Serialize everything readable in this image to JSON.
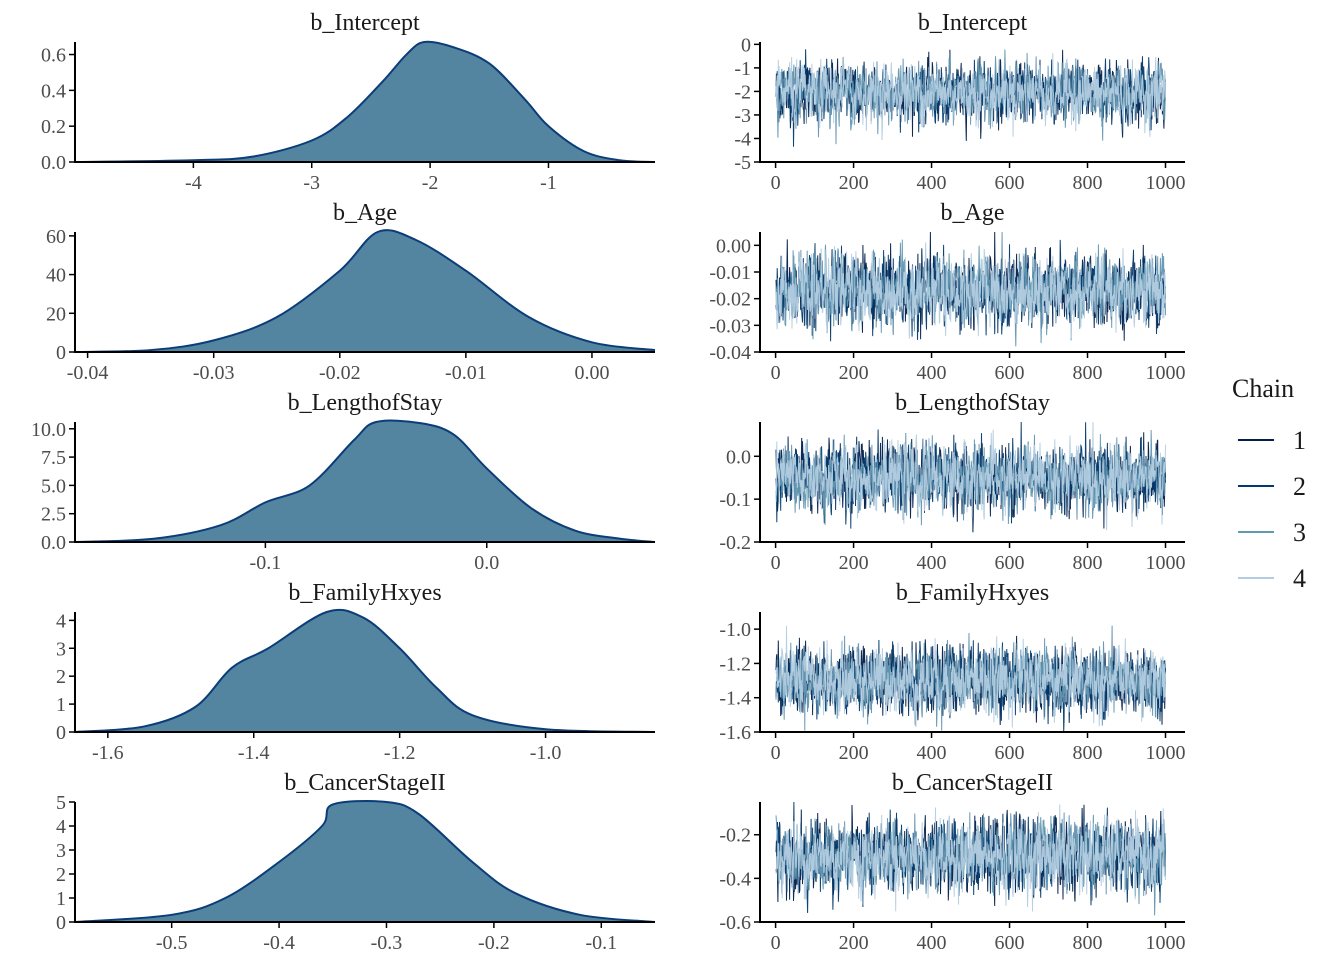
{
  "chart_data": [
    {
      "type": "area",
      "panel": "density",
      "title": "b_Intercept",
      "xlim": [
        -5.0,
        -0.1
      ],
      "ylim": [
        0,
        0.67
      ],
      "xticks": [
        -4,
        -3,
        -2,
        -1
      ],
      "xtick_labels": [
        "-4",
        "-3",
        "-2",
        "-1"
      ],
      "yticks": [
        0,
        0.2,
        0.4,
        0.6
      ],
      "ytick_labels": [
        "0.0",
        "0.2",
        "0.4",
        "0.6"
      ],
      "x": [
        -5,
        -4,
        -3.5,
        -3,
        -2.7,
        -2.4,
        -2.2,
        -2.05,
        -1.8,
        -1.5,
        -1.2,
        -1,
        -0.7,
        -0.4,
        -0.1
      ],
      "y": [
        0,
        0.01,
        0.03,
        0.12,
        0.25,
        0.45,
        0.6,
        0.67,
        0.64,
        0.55,
        0.35,
        0.2,
        0.06,
        0.01,
        0
      ]
    },
    {
      "type": "line",
      "panel": "trace",
      "title": "b_Intercept",
      "xlim": [
        -40,
        1050
      ],
      "ylim": [
        -5,
        0.1
      ],
      "xticks": [
        0,
        200,
        400,
        600,
        800,
        1000
      ],
      "xtick_labels": [
        "0",
        "200",
        "400",
        "600",
        "800",
        "1000"
      ],
      "yticks": [
        0,
        -1,
        -2,
        -3,
        -4,
        -5
      ],
      "ytick_labels": [
        "0",
        "-1",
        "-2",
        "-3",
        "-4",
        "-5"
      ]
    },
    {
      "type": "area",
      "panel": "density",
      "title": "b_Age",
      "xlim": [
        -0.041,
        0.005
      ],
      "ylim": [
        0,
        62
      ],
      "xticks": [
        -0.04,
        -0.03,
        -0.02,
        -0.01,
        0
      ],
      "xtick_labels": [
        "-0.04",
        "-0.03",
        "-0.02",
        "-0.01",
        "0.00"
      ],
      "yticks": [
        0,
        20,
        40,
        60
      ],
      "ytick_labels": [
        "0",
        "20",
        "40",
        "60"
      ],
      "x": [
        -0.041,
        -0.035,
        -0.03,
        -0.025,
        -0.02,
        -0.017,
        -0.014,
        -0.01,
        -0.005,
        0,
        0.005
      ],
      "y": [
        0,
        1,
        6,
        18,
        42,
        62,
        58,
        42,
        18,
        5,
        1
      ]
    },
    {
      "type": "line",
      "panel": "trace",
      "title": "b_Age",
      "xlim": [
        -40,
        1050
      ],
      "ylim": [
        -0.04,
        0.005
      ],
      "xticks": [
        0,
        200,
        400,
        600,
        800,
        1000
      ],
      "xtick_labels": [
        "0",
        "200",
        "400",
        "600",
        "800",
        "1000"
      ],
      "yticks": [
        0,
        -0.01,
        -0.02,
        -0.03,
        -0.04
      ],
      "ytick_labels": [
        "0.00",
        "-0.01",
        "-0.02",
        "-0.03",
        "-0.04"
      ]
    },
    {
      "type": "area",
      "panel": "density",
      "title": "b_LengthofStay",
      "xlim": [
        -0.186,
        0.076
      ],
      "ylim": [
        0,
        10.6
      ],
      "xticks": [
        -0.1,
        0
      ],
      "xtick_labels": [
        "-0.1",
        "0.0"
      ],
      "yticks": [
        0,
        2.5,
        5,
        7.5,
        10
      ],
      "ytick_labels": [
        "0.0",
        "2.5",
        "5.0",
        "7.5",
        "10.0"
      ],
      "x": [
        -0.186,
        -0.15,
        -0.12,
        -0.1,
        -0.08,
        -0.06,
        -0.05,
        -0.03,
        -0.015,
        0,
        0.02,
        0.04,
        0.06,
        0.076
      ],
      "y": [
        0,
        0.3,
        1.5,
        3.5,
        5,
        9,
        10.6,
        10.5,
        9.5,
        6.5,
        3,
        1,
        0.3,
        0
      ]
    },
    {
      "type": "line",
      "panel": "trace",
      "title": "b_LengthofStay",
      "xlim": [
        -40,
        1050
      ],
      "ylim": [
        -0.2,
        0.08
      ],
      "xticks": [
        0,
        200,
        400,
        600,
        800,
        1000
      ],
      "xtick_labels": [
        "0",
        "200",
        "400",
        "600",
        "800",
        "1000"
      ],
      "yticks": [
        0,
        -0.1,
        -0.2
      ],
      "ytick_labels": [
        "0.0",
        "-0.1",
        "-0.2"
      ]
    },
    {
      "type": "area",
      "panel": "density",
      "title": "b_FamilyHxyes",
      "xlim": [
        -1.645,
        -0.85
      ],
      "ylim": [
        0,
        4.3
      ],
      "xticks": [
        -1.6,
        -1.4,
        -1.2,
        -1.0
      ],
      "xtick_labels": [
        "-1.6",
        "-1.4",
        "-1.2",
        "-1.0"
      ],
      "yticks": [
        0,
        1,
        2,
        3,
        4
      ],
      "ytick_labels": [
        "0",
        "1",
        "2",
        "3",
        "4"
      ],
      "x": [
        -1.645,
        -1.55,
        -1.48,
        -1.43,
        -1.38,
        -1.3,
        -1.25,
        -1.2,
        -1.15,
        -1.1,
        -1.0,
        -0.85
      ],
      "y": [
        0,
        0.2,
        0.9,
        2.3,
        3,
        4.3,
        4.1,
        3,
        1.6,
        0.6,
        0.1,
        0
      ]
    },
    {
      "type": "line",
      "panel": "trace",
      "title": "b_FamilyHxyes",
      "xlim": [
        -40,
        1050
      ],
      "ylim": [
        -1.6,
        -0.9
      ],
      "xticks": [
        0,
        200,
        400,
        600,
        800,
        1000
      ],
      "xtick_labels": [
        "0",
        "200",
        "400",
        "600",
        "800",
        "1000"
      ],
      "yticks": [
        -1.0,
        -1.2,
        -1.4,
        -1.6
      ],
      "ytick_labels": [
        "-1.0",
        "-1.2",
        "-1.4",
        "-1.6"
      ]
    },
    {
      "type": "area",
      "panel": "density",
      "title": "b_CancerStageII",
      "xlim": [
        -0.59,
        -0.05
      ],
      "ylim": [
        0,
        5
      ],
      "xticks": [
        -0.5,
        -0.4,
        -0.3,
        -0.2,
        -0.1
      ],
      "xtick_labels": [
        "-0.5",
        "-0.4",
        "-0.3",
        "-0.2",
        "-0.1"
      ],
      "yticks": [
        0,
        1,
        2,
        3,
        4,
        5
      ],
      "ytick_labels": [
        "0",
        "1",
        "2",
        "3",
        "4",
        "5"
      ],
      "x": [
        -0.59,
        -0.5,
        -0.45,
        -0.4,
        -0.36,
        -0.35,
        -0.3,
        -0.27,
        -0.22,
        -0.18,
        -0.12,
        -0.05
      ],
      "y": [
        0,
        0.3,
        1,
        2.5,
        4,
        4.9,
        5,
        4.5,
        2.5,
        1.2,
        0.3,
        0
      ]
    },
    {
      "type": "line",
      "panel": "trace",
      "title": "b_CancerStageII",
      "xlim": [
        -40,
        1050
      ],
      "ylim": [
        -0.6,
        -0.05
      ],
      "xticks": [
        0,
        200,
        400,
        600,
        800,
        1000
      ],
      "xtick_labels": [
        "0",
        "200",
        "400",
        "600",
        "800",
        "1000"
      ],
      "yticks": [
        -0.2,
        -0.4,
        -0.6
      ],
      "ytick_labels": [
        "-0.2",
        "-0.4",
        "-0.6"
      ]
    }
  ],
  "legend": {
    "title": "Chain",
    "items": [
      {
        "label": "1",
        "color": "#011f4b"
      },
      {
        "label": "2",
        "color": "#03396c"
      },
      {
        "label": "3",
        "color": "#6497b1"
      },
      {
        "label": "4",
        "color": "#b3cde0"
      }
    ]
  },
  "colors": {
    "density_fill": "#5384a0",
    "density_line": "#0b3d78",
    "axis": "#000000"
  }
}
